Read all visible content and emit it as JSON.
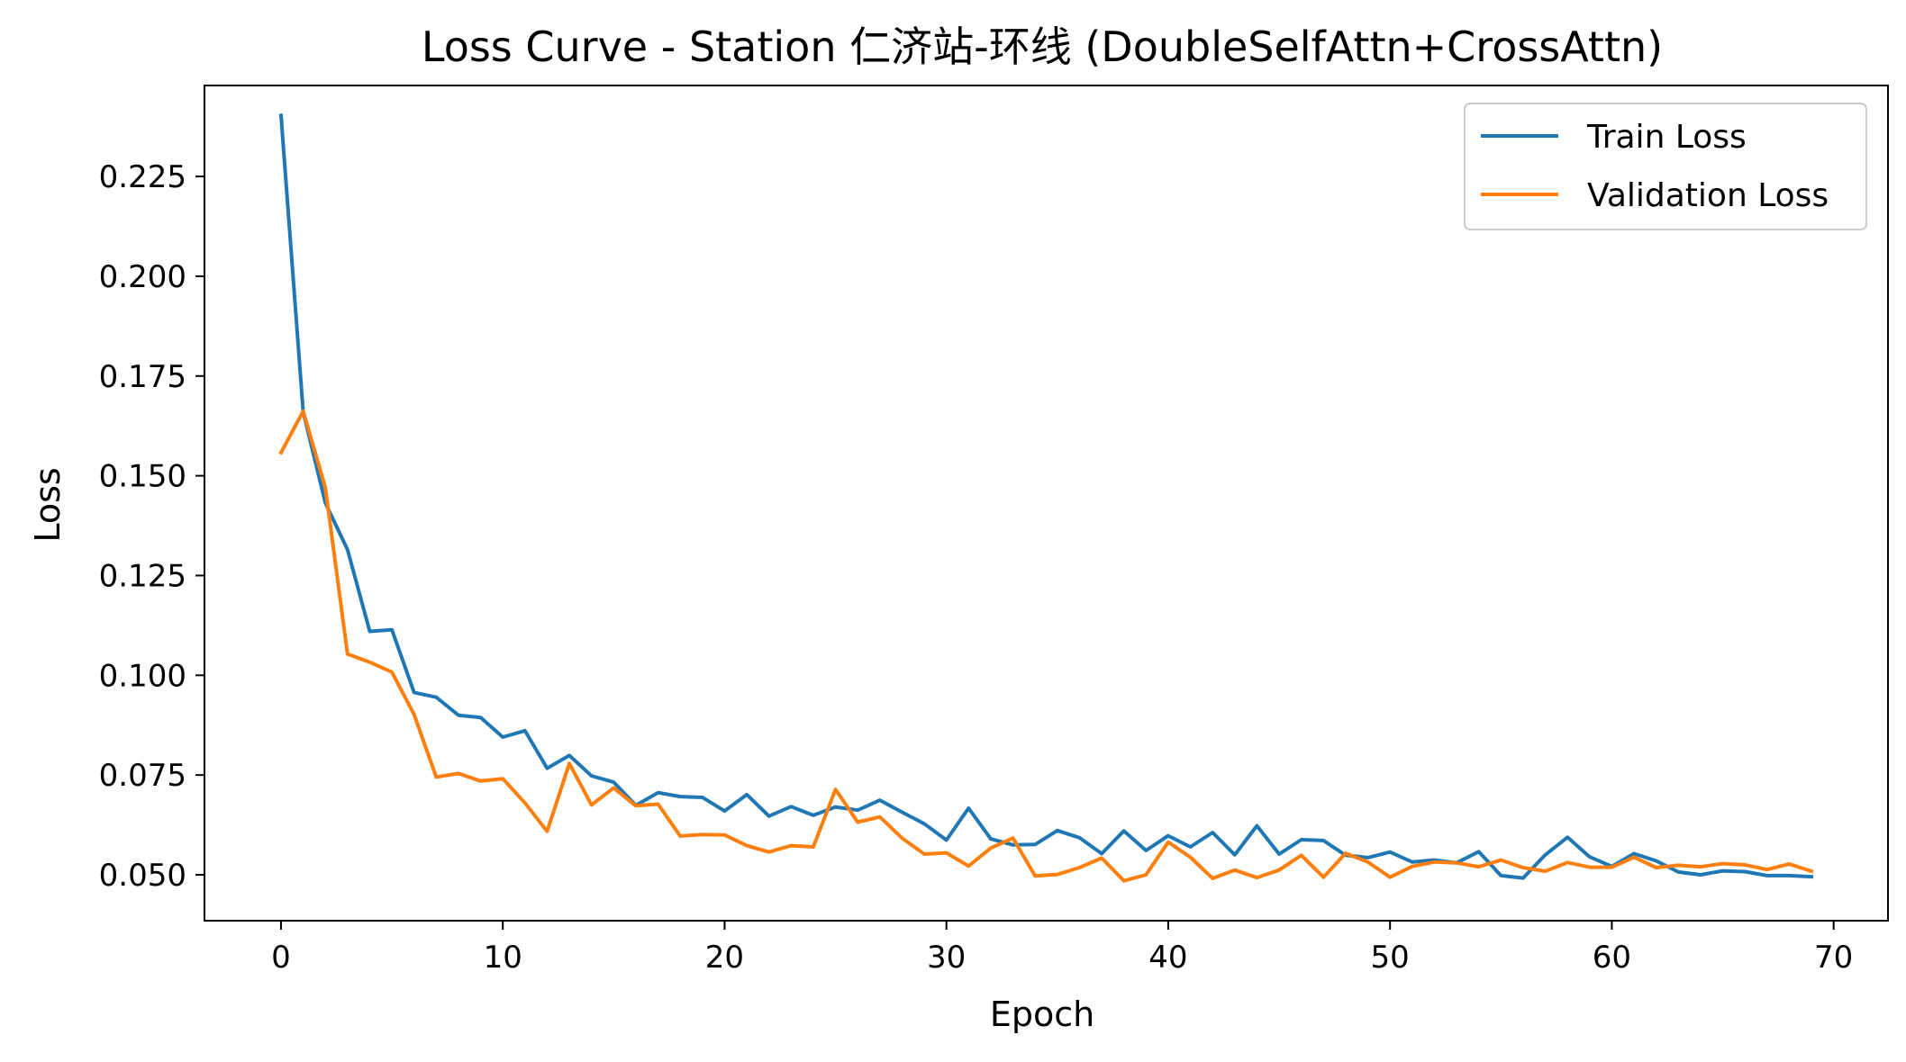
{
  "chart_data": {
    "type": "line",
    "title": "Loss Curve - Station 仁济站-环线 (DoubleSelfAttn+CrossAttn)",
    "xlabel": "Epoch",
    "ylabel": "Loss",
    "xlim": [
      -3.45,
      72.45
    ],
    "ylim": [
      0.0385,
      0.2478
    ],
    "x_ticks": [
      0,
      10,
      20,
      30,
      40,
      50,
      60,
      70
    ],
    "y_ticks": [
      0.05,
      0.075,
      0.1,
      0.125,
      0.15,
      0.175,
      0.2,
      0.225
    ],
    "x_tick_labels": [
      "0",
      "10",
      "20",
      "30",
      "40",
      "50",
      "60",
      "70"
    ],
    "y_tick_labels": [
      "0.050",
      "0.075",
      "0.100",
      "0.125",
      "0.150",
      "0.175",
      "0.200",
      "0.225"
    ],
    "grid": false,
    "legend_position": "top-right",
    "x": [
      0,
      1,
      2,
      3,
      4,
      5,
      6,
      7,
      8,
      9,
      10,
      11,
      12,
      13,
      14,
      15,
      16,
      17,
      18,
      19,
      20,
      21,
      22,
      23,
      24,
      25,
      26,
      27,
      28,
      29,
      30,
      31,
      32,
      33,
      34,
      35,
      36,
      37,
      38,
      39,
      40,
      41,
      42,
      43,
      44,
      45,
      46,
      47,
      48,
      49,
      50,
      51,
      52,
      53,
      54,
      55,
      56,
      57,
      58,
      59,
      60,
      61,
      62,
      63,
      64,
      65,
      66,
      67,
      68,
      69
    ],
    "series": [
      {
        "name": "Train Loss",
        "color": "#1f77b4",
        "values": [
          0.2403,
          0.166,
          0.1432,
          0.1315,
          0.111,
          0.1114,
          0.0957,
          0.0945,
          0.09,
          0.0894,
          0.0845,
          0.0861,
          0.0767,
          0.0799,
          0.0748,
          0.0732,
          0.0674,
          0.0706,
          0.0696,
          0.0694,
          0.066,
          0.0701,
          0.0647,
          0.0671,
          0.0649,
          0.067,
          0.0662,
          0.0687,
          0.0657,
          0.0628,
          0.0587,
          0.0667,
          0.059,
          0.0575,
          0.0576,
          0.0611,
          0.0593,
          0.0553,
          0.061,
          0.0561,
          0.0598,
          0.057,
          0.0606,
          0.055,
          0.0623,
          0.0552,
          0.0588,
          0.0586,
          0.0549,
          0.0543,
          0.0557,
          0.0532,
          0.0537,
          0.053,
          0.0558,
          0.0498,
          0.0492,
          0.055,
          0.0594,
          0.0545,
          0.0521,
          0.0553,
          0.0535,
          0.0507,
          0.05,
          0.051,
          0.0508,
          0.0498,
          0.0498,
          0.0495
        ]
      },
      {
        "name": "Validation Loss",
        "color": "#ff7f0e",
        "values": [
          0.1558,
          0.1662,
          0.147,
          0.1053,
          0.1033,
          0.1008,
          0.0902,
          0.0745,
          0.0754,
          0.0735,
          0.0741,
          0.068,
          0.0609,
          0.0779,
          0.0675,
          0.0718,
          0.0673,
          0.0677,
          0.0597,
          0.0601,
          0.06,
          0.0573,
          0.0557,
          0.0573,
          0.057,
          0.0714,
          0.0632,
          0.0645,
          0.0592,
          0.0552,
          0.0555,
          0.0522,
          0.0567,
          0.0592,
          0.0497,
          0.0501,
          0.0518,
          0.0542,
          0.0485,
          0.05,
          0.0582,
          0.0544,
          0.0491,
          0.0512,
          0.0493,
          0.0512,
          0.0549,
          0.0494,
          0.0554,
          0.0532,
          0.0494,
          0.0521,
          0.0532,
          0.053,
          0.052,
          0.0537,
          0.0518,
          0.0509,
          0.0531,
          0.0519,
          0.0519,
          0.0544,
          0.0518,
          0.0524,
          0.052,
          0.0528,
          0.0525,
          0.0513,
          0.0527,
          0.0509
        ]
      }
    ]
  }
}
